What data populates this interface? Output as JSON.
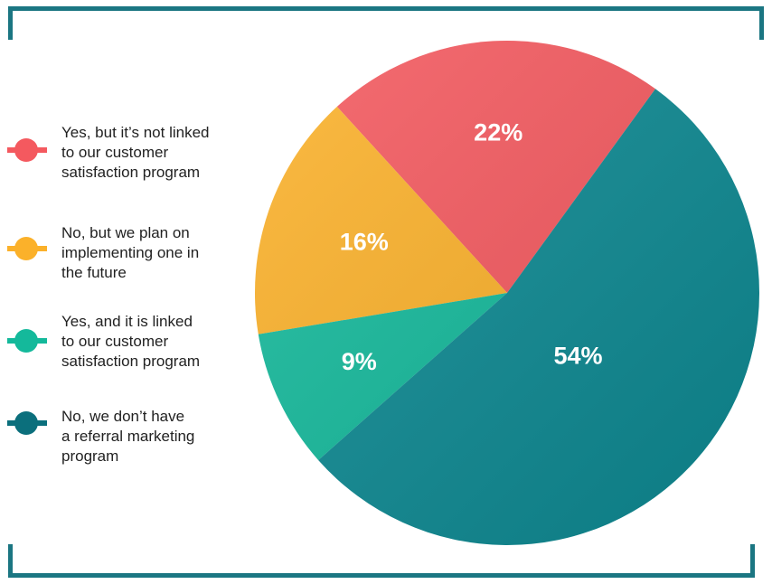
{
  "chart_data": {
    "type": "pie",
    "slices": [
      {
        "label": "Yes, but it’s not linked to our customer satisfaction program",
        "value": 22,
        "display": "22%",
        "color": "#f4595f"
      },
      {
        "label": "No, but we plan on implementing one in the future",
        "value": 16,
        "display": "16%",
        "color": "#fbb12a"
      },
      {
        "label": "Yes, and it is linked to our customer satisfaction program",
        "value": 9,
        "display": "9%",
        "color": "#14b99b"
      },
      {
        "label": "No, we don’t have a referral marketing program",
        "value": 54,
        "display": "54%",
        "color": "#0d8992"
      }
    ],
    "legend_position": "left"
  },
  "legend": [
    {
      "lines": [
        "Yes, but it’s not linked",
        "to our customer",
        "satisfaction program"
      ],
      "color": "#f4595f"
    },
    {
      "lines": [
        "No, but we plan on",
        "implementing one in",
        "the future"
      ],
      "color": "#fbb12a"
    },
    {
      "lines": [
        "Yes, and it is linked",
        "to our customer",
        "satisfaction program"
      ],
      "color": "#14b99b"
    },
    {
      "lines": [
        "No, we don’t have",
        "a referral marketing",
        "program"
      ],
      "color": "#0b6f7c"
    }
  ],
  "frame_color": "#1b7682"
}
